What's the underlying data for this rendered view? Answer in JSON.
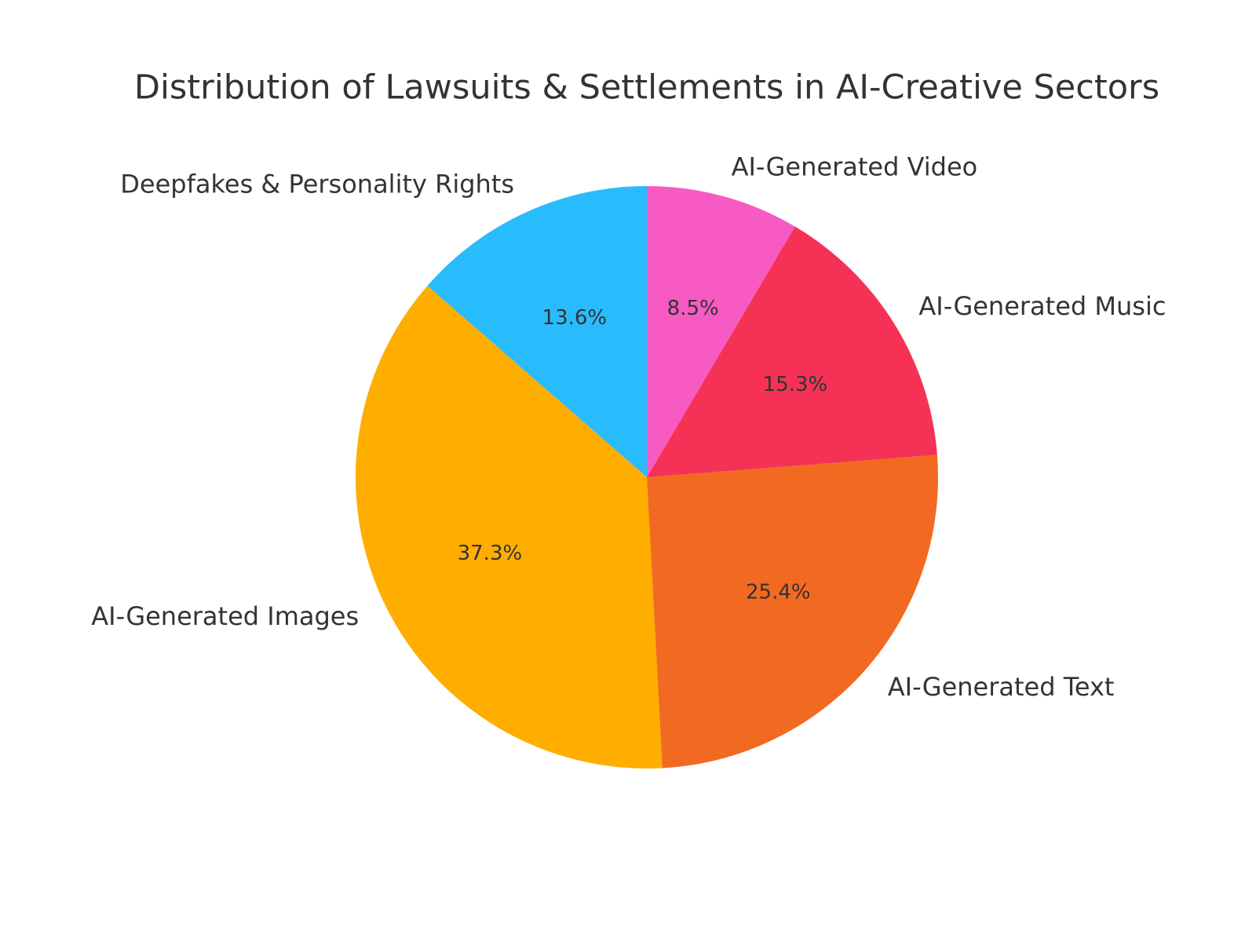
{
  "chart_data": {
    "type": "pie",
    "title": "Distribution of Lawsuits & Settlements in AI-Creative Sectors",
    "categories": [
      "Deepfakes & Personality Rights",
      "AI-Generated Images",
      "AI-Generated Text",
      "AI-Generated Music",
      "AI-Generated Video"
    ],
    "values": [
      13.6,
      37.3,
      25.4,
      15.3,
      8.5
    ],
    "value_labels": [
      "13.6%",
      "37.3%",
      "25.4%",
      "15.3%",
      "8.5%"
    ],
    "colors": [
      "#29bcfc",
      "#ffae00",
      "#f26a21",
      "#f53256",
      "#f75ac2"
    ]
  }
}
